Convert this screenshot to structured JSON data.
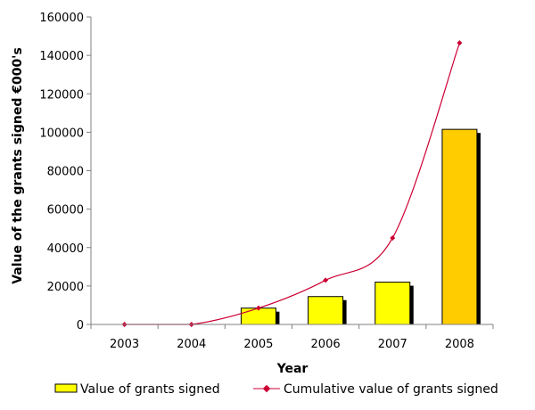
{
  "chart_data": {
    "type": "bar",
    "categories": [
      "2003",
      "2004",
      "2005",
      "2006",
      "2007",
      "2008"
    ],
    "series": [
      {
        "name": "Value of grants signed",
        "kind": "bar",
        "values": [
          0,
          0,
          8500,
          14500,
          22000,
          101500
        ]
      },
      {
        "name": "Cumulative value of grants signed",
        "kind": "line",
        "values": [
          0,
          0,
          8500,
          23000,
          45000,
          146500
        ]
      }
    ],
    "xlabel": "Year",
    "ylabel": "Value of the grants signed €000's",
    "ylim": [
      0,
      160000
    ],
    "yticks": [
      0,
      20000,
      40000,
      60000,
      80000,
      100000,
      120000,
      140000,
      160000
    ],
    "grid": false,
    "legend": "bottom",
    "colors": {
      "bar_fill": "#ffff00",
      "bar_highlight_fill": "#ffcc00",
      "bar_shadow": "#000000",
      "line": "#cc0033",
      "axis": "#808080"
    }
  }
}
